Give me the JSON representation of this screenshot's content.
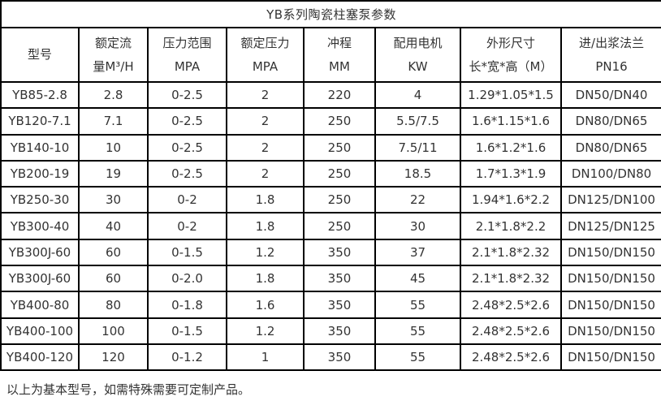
{
  "table": {
    "title": "YB系列陶瓷柱塞泵参数",
    "headers": [
      {
        "line1": "型号",
        "line2": ""
      },
      {
        "line1": "额定流",
        "line2": "量M³/H"
      },
      {
        "line1": "压力范围",
        "line2": "MPA"
      },
      {
        "line1": "额定压力",
        "line2": "MPA"
      },
      {
        "line1": "冲程",
        "line2": "MM"
      },
      {
        "line1": "配用电机",
        "line2": "KW"
      },
      {
        "line1": "外形尺寸",
        "line2": "长*宽*高（M）"
      },
      {
        "line1": "进/出浆法兰",
        "line2": "PN16"
      }
    ],
    "rows": [
      [
        "YB85-2.8",
        "2.8",
        "0-2.5",
        "2",
        "220",
        "4",
        "1.29*1.05*1.5",
        "DN50/DN40"
      ],
      [
        "YB120-7.1",
        "7.1",
        "0-2.5",
        "2",
        "250",
        "5.5/7.5",
        "1.6*1.15*1.6",
        "DN80/DN65"
      ],
      [
        "YB140-10",
        "10",
        "0-2.5",
        "2",
        "250",
        "7.5/11",
        "1.6*1.2*1.6",
        "DN80/DN65"
      ],
      [
        "YB200-19",
        "19",
        "0-2.5",
        "2",
        "250",
        "18.5",
        "1.7*1.3*1.9",
        "DN100/DN80"
      ],
      [
        "YB250-30",
        "30",
        "0-2",
        "1.8",
        "250",
        "22",
        "1.94*1.6*2.2",
        "DN125/DN100"
      ],
      [
        "YB300-40",
        "40",
        "0-2",
        "1.8",
        "250",
        "30",
        "2.1*1.8*2.2",
        "DN125/DN125"
      ],
      [
        "YB300J-60",
        "60",
        "0-1.5",
        "1.2",
        "350",
        "37",
        "2.1*1.8*2.32",
        "DN150/DN150"
      ],
      [
        "YB300J-60",
        "60",
        "0-2.0",
        "1.8",
        "350",
        "45",
        "2.1*1.8*2.32",
        "DN150/DN150"
      ],
      [
        "YB400-80",
        "80",
        "0-1.8",
        "1.6",
        "350",
        "55",
        "2.48*2.5*2.6",
        "DN150/DN150"
      ],
      [
        "YB400-100",
        "100",
        "0-1.5",
        "1.2",
        "350",
        "55",
        "2.48*2.5*2.6",
        "DN150/DN150"
      ],
      [
        "YB400-120",
        "120",
        "0-1.2",
        "1",
        "350",
        "55",
        "2.48*2.5*2.6",
        "DN150/DN150"
      ]
    ],
    "footer_note": "以上为基本型号，如需特殊需要可定制产品。"
  },
  "colors": {
    "border": "#000000",
    "text": "#333333",
    "background": "#ffffff"
  }
}
